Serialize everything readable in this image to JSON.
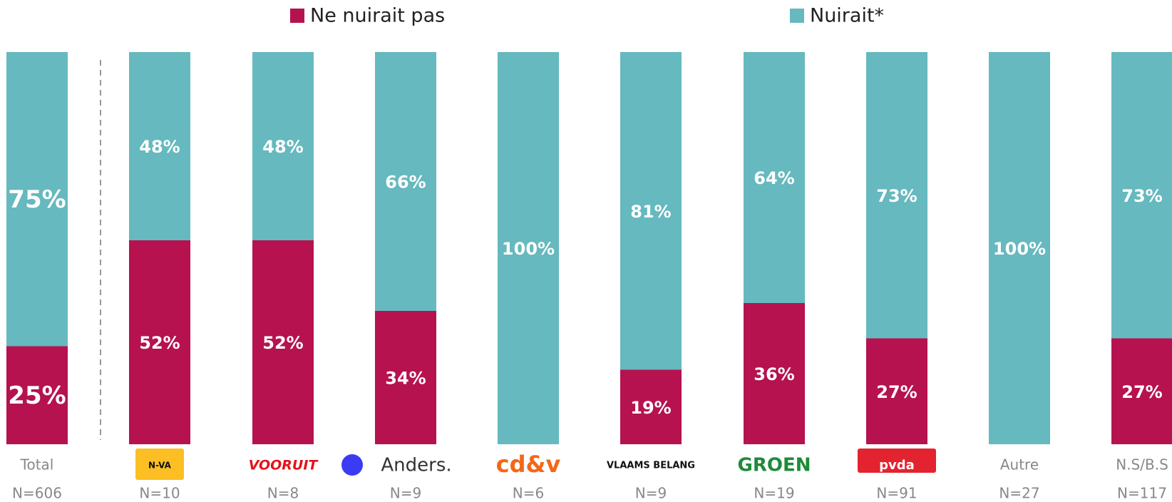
{
  "chart_data": {
    "type": "stacked_bar",
    "categories": [
      "Total",
      "N-VA",
      "VOORUIT",
      "Anders.",
      "cd&v",
      "VLAAMS BELANG",
      "GROEN",
      "pvda",
      "Autre",
      "N.S/B.S"
    ],
    "n_labels": [
      "N=606",
      "N=10",
      "N=8",
      "N=9",
      "N=6",
      "N=9",
      "N=19",
      "N=91",
      "N=27",
      "N=117"
    ],
    "ylim": [
      0,
      100
    ],
    "legend": "top",
    "series": [
      {
        "name": "Ne nuirait pas",
        "color": "#b5124f",
        "values": [
          25,
          52,
          52,
          34,
          0,
          19,
          36,
          27,
          0,
          27
        ],
        "value_labels": [
          "25%",
          "52%",
          "52%",
          "34%",
          null,
          "19%",
          "36%",
          "27%",
          null,
          "27%"
        ]
      },
      {
        "name": "Nuirait*",
        "color": "#66b9be",
        "values": [
          75,
          48,
          48,
          66,
          100,
          81,
          64,
          73,
          100,
          73
        ],
        "value_labels": [
          "75%",
          "48%",
          "48%",
          "66%",
          "100%",
          "81%",
          "64%",
          "73%",
          "100%",
          "73%"
        ]
      }
    ]
  }
}
